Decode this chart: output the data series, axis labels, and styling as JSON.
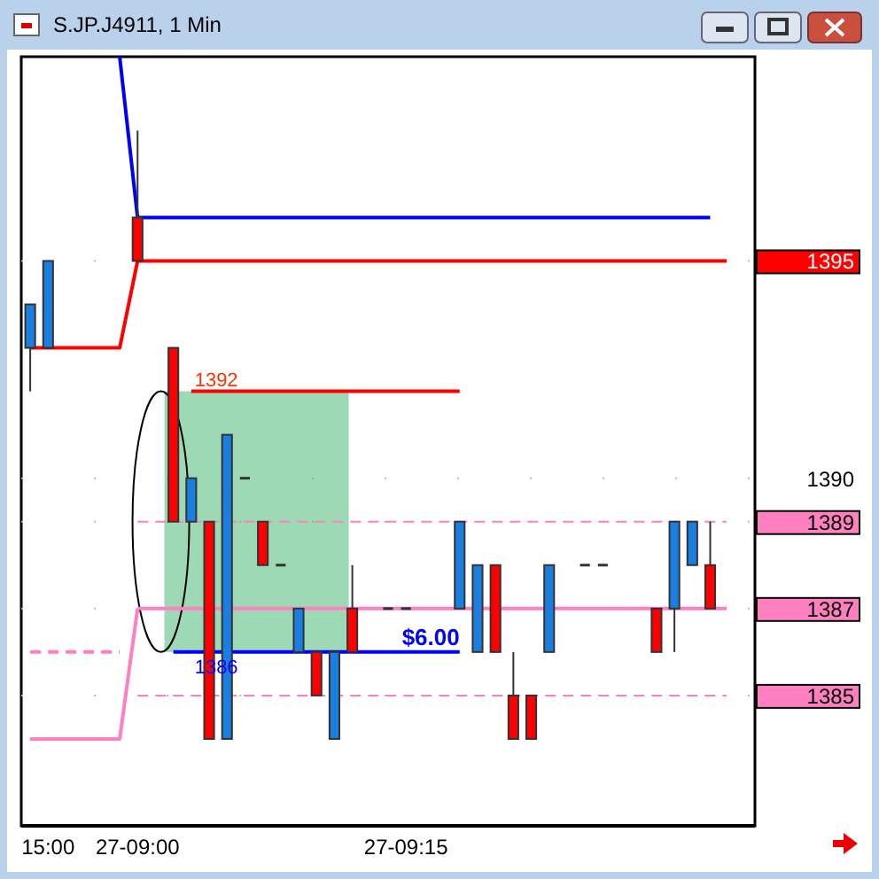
{
  "chart_data": {
    "type": "candlestick",
    "title": "S.JP.J4911, 1 Min",
    "categories": [
      null,
      "15:00",
      null,
      null,
      null,
      null,
      "27-09:00",
      null,
      null,
      null,
      null,
      null,
      null,
      null,
      null,
      null,
      null,
      null,
      null,
      null,
      null,
      "27-09:15",
      null,
      null,
      null,
      null,
      null,
      null,
      null,
      null,
      null,
      null,
      null,
      null,
      null,
      null,
      null,
      null,
      null,
      null,
      null
    ],
    "ohlc": [
      [
        1393,
        1394,
        1392,
        1394
      ],
      [
        1393,
        1395,
        1393,
        1395
      ],
      null,
      null,
      null,
      null,
      [
        1396,
        1398,
        1395,
        1395
      ],
      null,
      [
        1393,
        1393,
        1389,
        1389
      ],
      [
        1389,
        1390,
        1389,
        1390
      ],
      [
        1389,
        1389,
        1384,
        1384
      ],
      [
        1384,
        1391,
        1384,
        1391
      ],
      [
        1390,
        1390,
        1390,
        1390
      ],
      [
        1389,
        1389,
        1388,
        1388
      ],
      [
        1388,
        1388,
        1388,
        1388
      ],
      [
        1386,
        1387,
        1386,
        1387
      ],
      [
        1386,
        1386,
        1385,
        1385
      ],
      [
        1384,
        1386,
        1384,
        1386
      ],
      [
        1387,
        1388,
        1386,
        1386
      ],
      null,
      [
        1387,
        1387,
        1387,
        1387
      ],
      [
        1387,
        1387,
        1387,
        1387
      ],
      null,
      null,
      [
        1387,
        1389,
        1387,
        1389
      ],
      [
        1386,
        1388,
        1386,
        1388
      ],
      [
        1388,
        1388,
        1386,
        1386
      ],
      [
        1385,
        1386,
        1384,
        1384
      ],
      [
        1385,
        1385,
        1384,
        1384
      ],
      [
        1386,
        1388,
        1386,
        1388
      ],
      null,
      [
        1388,
        1388,
        1388,
        1388
      ],
      [
        1388,
        1388,
        1388,
        1388
      ],
      null,
      null,
      [
        1387,
        1387,
        1386,
        1386
      ],
      [
        1387,
        1389,
        1386,
        1389
      ],
      [
        1388,
        1389,
        1388,
        1389
      ],
      [
        1388,
        1389,
        1387,
        1387
      ],
      null,
      null
    ],
    "colors": [
      "#1a7fe0",
      "#1a7fe0",
      null,
      null,
      null,
      null,
      "#ff0000",
      null,
      "#ff0000",
      "#1a7fe0",
      "#ff0000",
      "#1a7fe0",
      "#333333",
      "#ff0000",
      "#333333",
      "#1a7fe0",
      "#ff0000",
      "#1a7fe0",
      "#ff0000",
      null,
      "#333333",
      "#333333",
      null,
      null,
      "#1a7fe0",
      "#1a7fe0",
      "#ff0000",
      "#ff0000",
      "#ff0000",
      "#1a7fe0",
      null,
      "#333333",
      "#333333",
      null,
      null,
      "#ff0000",
      "#1a7fe0",
      "#1a7fe0",
      "#ff0000",
      null,
      null
    ],
    "series": [
      {
        "type": "line",
        "color": "#0000ff",
        "values": [
          null,
          null,
          null,
          null,
          null,
          1399.7,
          1396,
          1396,
          1396,
          1396,
          1396,
          1396,
          1396,
          1396,
          1396,
          1396,
          1396,
          1396,
          1396,
          1396,
          1396,
          1396,
          1396,
          1396,
          1396,
          1396,
          1396,
          1396,
          1396,
          1396,
          1396,
          1396,
          1396,
          1396,
          1396,
          1396,
          1396,
          1396,
          1396,
          null,
          null
        ]
      },
      {
        "type": "line",
        "color": "#ff0000",
        "values": [
          1393,
          1393,
          1393,
          1393,
          1393,
          1393,
          1395,
          null,
          null,
          null,
          null,
          null,
          null,
          null,
          null,
          null,
          null,
          null,
          null,
          null,
          null,
          null,
          null,
          null,
          null,
          null,
          null,
          null,
          null,
          null,
          null,
          null,
          null,
          null,
          null,
          null,
          null,
          null,
          null,
          null,
          null
        ]
      },
      {
        "type": "line",
        "color": "#ff80c0",
        "values": [
          1384,
          1384,
          1384,
          1384,
          1384,
          1384,
          1387,
          null,
          null,
          null,
          null,
          null,
          null,
          null,
          null,
          null,
          null,
          null,
          null,
          null,
          null,
          null,
          null,
          null,
          null,
          null,
          null,
          null,
          null,
          null,
          null,
          null,
          null,
          null,
          null,
          null,
          null,
          null,
          null,
          null,
          null
        ]
      },
      {
        "type": "line",
        "color": "#ff80c0",
        "line_style": "dashed",
        "values": [
          1386,
          1386,
          1386,
          1386,
          1386,
          1386,
          null,
          null,
          null,
          null,
          null,
          null,
          null,
          null,
          null,
          null,
          null,
          null,
          null,
          null,
          null,
          null,
          null,
          null,
          null,
          null,
          null,
          null,
          null,
          null,
          null,
          null,
          null,
          null,
          null,
          null,
          null,
          null,
          null,
          null,
          null
        ]
      },
      {
        "type": "line",
        "color": "#ff0000",
        "values": [
          null,
          null,
          null,
          null,
          null,
          null,
          null,
          null,
          null,
          1392,
          1392,
          1392,
          1392,
          1392,
          1392,
          1392,
          1392,
          1392,
          1392,
          1392,
          1392,
          1392,
          1392,
          1392,
          1392,
          null,
          null,
          null,
          null,
          null,
          null,
          null,
          null,
          null,
          null,
          null,
          null,
          null,
          null,
          null,
          null
        ]
      },
      {
        "type": "line",
        "color": "#0000ff",
        "values": [
          null,
          null,
          null,
          null,
          null,
          null,
          null,
          null,
          1386,
          1386,
          1386,
          1386,
          1386,
          1386,
          1386,
          1386,
          1386,
          1386,
          1386,
          1386,
          1386,
          1386,
          1386,
          1386,
          1386,
          null,
          null,
          null,
          null,
          null,
          null,
          null,
          null,
          null,
          null,
          null,
          null,
          null,
          null,
          null,
          null
        ]
      }
    ],
    "ref_lines": [
      {
        "axis": "y",
        "value": 1395,
        "color": "#ff0000",
        "line_style": "solid"
      },
      {
        "axis": "y",
        "value": 1389,
        "color": "#ff80c0",
        "line_style": "dashed"
      },
      {
        "axis": "y",
        "value": 1387,
        "color": "#ff80c0",
        "line_style": "solid"
      },
      {
        "axis": "y",
        "value": 1385,
        "color": "#ff80c0",
        "line_style": "dashed"
      }
    ],
    "annotations": [
      "1392",
      "1386",
      "$6.00"
    ],
    "ylim": [
      1382,
      1399.7
    ],
    "yticks": [
      1385,
      1387,
      1389,
      1390,
      1395
    ],
    "grid": true
  }
}
